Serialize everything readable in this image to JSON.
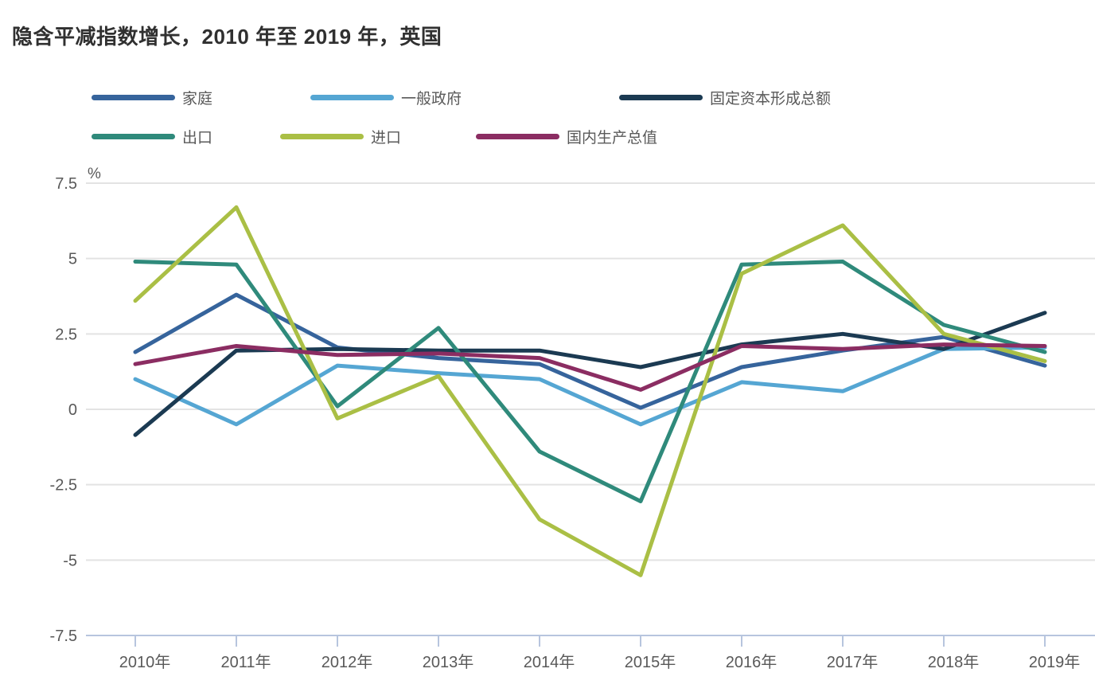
{
  "title": "隐含平减指数增长，2010 年至 2019 年，英国",
  "chart_data": {
    "type": "line",
    "title": "隐含平减指数增长，2010 年至 2019 年，英国",
    "unit": "%",
    "categories": [
      "2010年",
      "2011年",
      "2012年",
      "2013年",
      "2014年",
      "2015年",
      "2016年",
      "2017年",
      "2018年",
      "2019年"
    ],
    "series": [
      {
        "name": "家庭",
        "color": "#36649c",
        "values": [
          1.9,
          3.8,
          2.05,
          1.7,
          1.5,
          0.05,
          1.4,
          1.95,
          2.4,
          1.45
        ]
      },
      {
        "name": "一般政府",
        "color": "#55a6d3",
        "values": [
          1.0,
          -0.5,
          1.45,
          1.2,
          1.0,
          -0.5,
          0.9,
          0.6,
          2.0,
          2.05
        ]
      },
      {
        "name": "固定资本形成总额",
        "color": "#1b3a52",
        "values": [
          -0.85,
          1.95,
          2.0,
          1.95,
          1.95,
          1.4,
          2.15,
          2.5,
          2.0,
          3.2
        ]
      },
      {
        "name": "出口",
        "color": "#2f8a7b",
        "values": [
          4.9,
          4.8,
          0.1,
          2.7,
          -1.4,
          -3.05,
          4.8,
          4.9,
          2.8,
          1.9
        ]
      },
      {
        "name": "进口",
        "color": "#aabf45",
        "values": [
          3.6,
          6.7,
          -0.3,
          1.1,
          -3.65,
          -5.5,
          4.5,
          6.1,
          2.5,
          1.6
        ]
      },
      {
        "name": "国内生产总值",
        "color": "#8b2d62",
        "values": [
          1.5,
          2.1,
          1.8,
          1.85,
          1.7,
          0.65,
          2.1,
          2.0,
          2.15,
          2.1
        ]
      }
    ],
    "yticks": [
      "7.5",
      "5",
      "2.5",
      "0",
      "-2.5",
      "-5",
      "-7.5"
    ],
    "ylim": [
      -7.5,
      7.5
    ],
    "grid": true,
    "legend_position": "top",
    "legend_rows": [
      [
        "家庭",
        "一般政府",
        "固定资本形成总额"
      ],
      [
        "出口",
        "进口",
        "国内生产总值"
      ]
    ]
  },
  "colors": {
    "gridline": "#e3e3e3",
    "axis": "#b7c5de",
    "tick_text": "#595959",
    "title_text": "#303030",
    "legend_text": "#595959",
    "background": "#ffffff"
  }
}
